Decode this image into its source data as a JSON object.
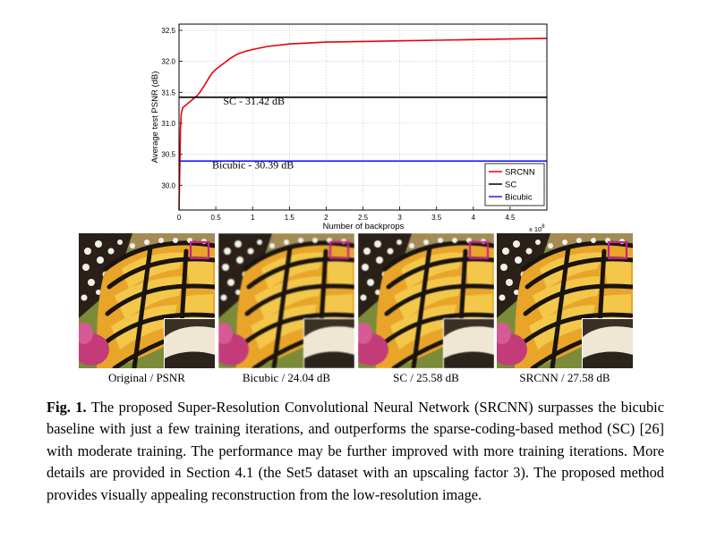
{
  "chart_data": {
    "type": "line",
    "title": "",
    "xlabel": "Number of backprops",
    "ylabel": "Average test PSNR (dB)",
    "x_multiplier": "x 10",
    "x_multiplier_exponent": "8",
    "xlim": [
      0,
      5.0
    ],
    "ylim": [
      29.6,
      32.6
    ],
    "xticks": [
      "0",
      "0.5",
      "1",
      "1.5",
      "2",
      "2.5",
      "3",
      "3.5",
      "4",
      "4.5"
    ],
    "xtick_values": [
      0,
      0.5,
      1,
      1.5,
      2,
      2.5,
      3,
      3.5,
      4,
      4.5
    ],
    "yticks": [
      "30.0",
      "30.5",
      "31.0",
      "31.5",
      "32.0",
      "32.5"
    ],
    "ytick_values": [
      30.0,
      30.5,
      31.0,
      31.5,
      32.0,
      32.5
    ],
    "grid": true,
    "legend_position": "bottom-right",
    "series": [
      {
        "name": "SRCNN",
        "color": "#e8000b",
        "x": [
          0,
          0.01,
          0.02,
          0.03,
          0.05,
          0.08,
          0.12,
          0.18,
          0.25,
          0.3,
          0.35,
          0.4,
          0.45,
          0.5,
          0.6,
          0.7,
          0.8,
          0.9,
          1.0,
          1.2,
          1.5,
          2.0,
          2.5,
          3.0,
          3.5,
          4.0,
          4.5,
          5.0
        ],
        "y": [
          29.6,
          30.2,
          30.9,
          31.15,
          31.25,
          31.28,
          31.32,
          31.38,
          31.45,
          31.53,
          31.62,
          31.72,
          31.81,
          31.87,
          31.96,
          32.05,
          32.12,
          32.16,
          32.19,
          32.24,
          32.28,
          32.31,
          32.32,
          32.33,
          32.34,
          32.35,
          32.36,
          32.37
        ]
      },
      {
        "name": "SC",
        "color": "#000000",
        "x": [
          0,
          5.0
        ],
        "y": [
          31.42,
          31.42
        ]
      },
      {
        "name": "Bicubic",
        "color": "#1a1aff",
        "x": [
          0,
          5.0
        ],
        "y": [
          30.39,
          30.39
        ]
      }
    ],
    "annotations": [
      {
        "text": "SC - 31.42 dB",
        "x": 0.6,
        "y": 31.3
      },
      {
        "text": "Bicubic - 30.39 dB",
        "x": 0.45,
        "y": 30.27
      }
    ]
  },
  "panels": [
    {
      "caption": "Original / PSNR"
    },
    {
      "caption": "Bicubic / 24.04 dB"
    },
    {
      "caption": "SC / 25.58 dB"
    },
    {
      "caption": "SRCNN / 27.58 dB"
    }
  ],
  "figure_caption": {
    "label": "Fig. 1.",
    "text": "The proposed Super-Resolution Convolutional Neural Network (SRCNN) surpasses the bicubic baseline with just a few training iterations, and outperforms the sparse-coding-based method (SC) [26] with moderate training. The performance may be further improved with more training iterations. More details are provided in Section 4.1 (the Set5 dataset with an upscaling factor 3). The proposed method provides visually appealing reconstruction from the low-resolution image."
  },
  "colors": {
    "zoom_box": "#c8208a",
    "wing_orange": "#e8a52a",
    "wing_yellow": "#f3c84a",
    "vein_black": "#1a1410",
    "flower_pink": "#c33c79",
    "background_green": "#7b8b3a"
  }
}
